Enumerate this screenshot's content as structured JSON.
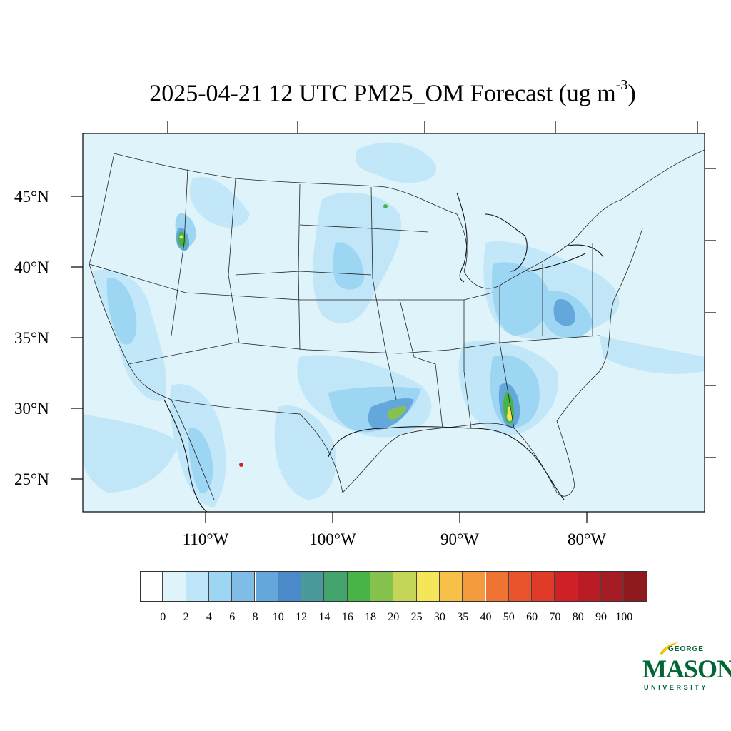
{
  "title": {
    "text": "2025-04-21 12 UTC PM25_OM Forecast (ug m",
    "superscript": "-3",
    "closing": ")"
  },
  "map": {
    "lat_labels": [
      "45°N",
      "40°N",
      "35°N",
      "30°N",
      "25°N"
    ],
    "lon_labels": [
      "110°W",
      "100°W",
      "90°W",
      "80°W"
    ],
    "background_color": "#dff3fb"
  },
  "colorbar": {
    "labels": [
      "0",
      "2",
      "4",
      "6",
      "8",
      "10",
      "12",
      "14",
      "16",
      "18",
      "20",
      "25",
      "30",
      "35",
      "40",
      "50",
      "60",
      "70",
      "80",
      "90",
      "100"
    ],
    "colors": [
      "#ffffff",
      "#dff3fb",
      "#bfe6f8",
      "#9dd6f3",
      "#7fbde6",
      "#64a7db",
      "#4b8ac8",
      "#4a9a9c",
      "#44a46e",
      "#48b447",
      "#85c34e",
      "#c5d557",
      "#f5e659",
      "#f7c048",
      "#f39a3d",
      "#ef7434",
      "#e9542d",
      "#df3b28",
      "#d02128",
      "#ba1c26",
      "#a51c24",
      "#8e1a1e"
    ]
  },
  "logo": {
    "line1": "GEORGE",
    "line2": "MASON",
    "line3": "UNIVERSITY"
  }
}
